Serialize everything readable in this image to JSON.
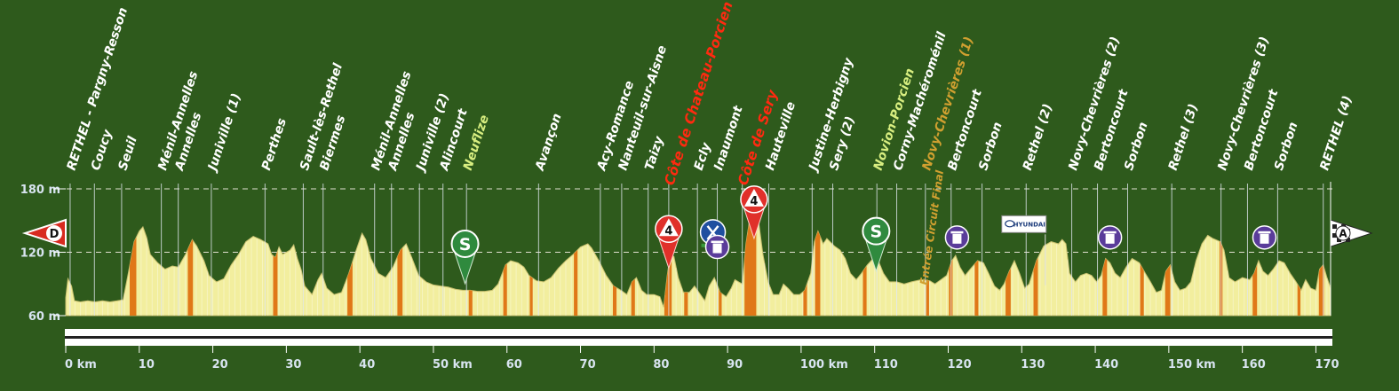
{
  "colors": {
    "background": "#2e5a1c",
    "profile_fill": "#f2ee9e",
    "profile_edge": "#c8c070",
    "climb_stripe": "#e07818",
    "town_label": "#ffffff",
    "climb_label": "#ff2a10",
    "sprint_label": "#d8ee80",
    "circuit_label": "#d0a030",
    "gridline": "#e0e0d0",
    "axis_text": "#d8e4f0"
  },
  "chart_data": {
    "type": "area",
    "title": "",
    "xlabel": "",
    "ylabel": "",
    "xlim": [
      0,
      172
    ],
    "ylim": [
      60,
      180
    ],
    "y_ticks": [
      {
        "value": 60,
        "label": "60 m"
      },
      {
        "value": 120,
        "label": "120 m"
      },
      {
        "value": 180,
        "label": "180 m"
      }
    ],
    "y_dashed_lines": [
      120,
      180
    ],
    "x_ticks": [
      {
        "value": 0,
        "label": "0 km"
      },
      {
        "value": 10,
        "label": "10"
      },
      {
        "value": 20,
        "label": "20"
      },
      {
        "value": 30,
        "label": "30"
      },
      {
        "value": 40,
        "label": "40"
      },
      {
        "value": 50,
        "label": "50 km"
      },
      {
        "value": 60,
        "label": "60"
      },
      {
        "value": 70,
        "label": "70"
      },
      {
        "value": 80,
        "label": "80"
      },
      {
        "value": 90,
        "label": "90"
      },
      {
        "value": 100,
        "label": "100 km"
      },
      {
        "value": 110,
        "label": "110"
      },
      {
        "value": 120,
        "label": "120"
      },
      {
        "value": 130,
        "label": "130"
      },
      {
        "value": 140,
        "label": "140"
      },
      {
        "value": 150,
        "label": "150 km"
      },
      {
        "value": 160,
        "label": "160"
      },
      {
        "value": 170,
        "label": "170"
      }
    ],
    "profile": [
      [
        0,
        77
      ],
      [
        0.3,
        95
      ],
      [
        0.8,
        88
      ],
      [
        1.2,
        74
      ],
      [
        2,
        73
      ],
      [
        3,
        74
      ],
      [
        4,
        73
      ],
      [
        5,
        74
      ],
      [
        6,
        73
      ],
      [
        7,
        74
      ],
      [
        7.8,
        75
      ],
      [
        8.5,
        100
      ],
      [
        9.3,
        130
      ],
      [
        10,
        140
      ],
      [
        10.5,
        144
      ],
      [
        11,
        134
      ],
      [
        11.5,
        118
      ],
      [
        12.5,
        110
      ],
      [
        13.5,
        104
      ],
      [
        14.5,
        107
      ],
      [
        15.3,
        106
      ],
      [
        16.3,
        118
      ],
      [
        17.2,
        132
      ],
      [
        17.8,
        126
      ],
      [
        18.8,
        112
      ],
      [
        19.5,
        98
      ],
      [
        20.5,
        92
      ],
      [
        21.5,
        95
      ],
      [
        22.5,
        108
      ],
      [
        23.5,
        118
      ],
      [
        24.5,
        130
      ],
      [
        25.5,
        135
      ],
      [
        26.5,
        132
      ],
      [
        27.5,
        128
      ],
      [
        28,
        118
      ],
      [
        28.5,
        115
      ],
      [
        29,
        125
      ],
      [
        29.5,
        118
      ],
      [
        30.5,
        122
      ],
      [
        31,
        127
      ],
      [
        31.5,
        114
      ],
      [
        32,
        104
      ],
      [
        32.5,
        88
      ],
      [
        33.5,
        80
      ],
      [
        34.3,
        94
      ],
      [
        34.8,
        100
      ],
      [
        35.5,
        86
      ],
      [
        36.5,
        80
      ],
      [
        37.5,
        82
      ],
      [
        38.5,
        100
      ],
      [
        39.5,
        122
      ],
      [
        40.3,
        138
      ],
      [
        40.8,
        132
      ],
      [
        41.5,
        114
      ],
      [
        42.5,
        100
      ],
      [
        43.5,
        96
      ],
      [
        44.5,
        106
      ],
      [
        45.5,
        122
      ],
      [
        46.3,
        128
      ],
      [
        47,
        116
      ],
      [
        48,
        98
      ],
      [
        49,
        92
      ],
      [
        50,
        89
      ],
      [
        51,
        88
      ],
      [
        52,
        87
      ],
      [
        53,
        85
      ],
      [
        54,
        84
      ],
      [
        55,
        84
      ],
      [
        56,
        83
      ],
      [
        57,
        83
      ],
      [
        58,
        84
      ],
      [
        58.8,
        90
      ],
      [
        59.8,
        108
      ],
      [
        60.5,
        112
      ],
      [
        61.5,
        110
      ],
      [
        62.3,
        106
      ],
      [
        63,
        98
      ],
      [
        64,
        93
      ],
      [
        65,
        92
      ],
      [
        66,
        96
      ],
      [
        67,
        105
      ],
      [
        68,
        112
      ],
      [
        69,
        118
      ],
      [
        70,
        125
      ],
      [
        71,
        128
      ],
      [
        71.5,
        124
      ],
      [
        72.5,
        112
      ],
      [
        73.5,
        98
      ],
      [
        74.5,
        88
      ],
      [
        75.5,
        84
      ],
      [
        76.3,
        80
      ],
      [
        77,
        92
      ],
      [
        77.6,
        96
      ],
      [
        78.3,
        84
      ],
      [
        79,
        80
      ],
      [
        80,
        80
      ],
      [
        80.8,
        78
      ],
      [
        81.3,
        68
      ],
      [
        81.8,
        98
      ],
      [
        82.2,
        118
      ],
      [
        82.7,
        116
      ],
      [
        83.3,
        96
      ],
      [
        84,
        82
      ],
      [
        84.8,
        82
      ],
      [
        85.5,
        88
      ],
      [
        86.3,
        80
      ],
      [
        86.9,
        74
      ],
      [
        87.5,
        88
      ],
      [
        88.2,
        96
      ],
      [
        89,
        82
      ],
      [
        89.8,
        78
      ],
      [
        90.5,
        86
      ],
      [
        91,
        94
      ],
      [
        91.5,
        92
      ],
      [
        92,
        90
      ],
      [
        92.5,
        128
      ],
      [
        93.2,
        160
      ],
      [
        93.7,
        163
      ],
      [
        94.2,
        150
      ],
      [
        94.8,
        118
      ],
      [
        95.5,
        92
      ],
      [
        96.2,
        80
      ],
      [
        97,
        80
      ],
      [
        97.6,
        90
      ],
      [
        98.2,
        86
      ],
      [
        99,
        80
      ],
      [
        99.8,
        80
      ],
      [
        100.5,
        84
      ],
      [
        101.3,
        100
      ],
      [
        101.8,
        130
      ],
      [
        102.3,
        140
      ],
      [
        103,
        128
      ],
      [
        103.5,
        133
      ],
      [
        104.5,
        126
      ],
      [
        105.3,
        122
      ],
      [
        106,
        114
      ],
      [
        106.7,
        100
      ],
      [
        107.5,
        94
      ],
      [
        108.2,
        100
      ],
      [
        109,
        108
      ],
      [
        109.8,
        114
      ],
      [
        110.5,
        112
      ],
      [
        111.2,
        100
      ],
      [
        112,
        92
      ],
      [
        113,
        92
      ],
      [
        114,
        90
      ],
      [
        115,
        92
      ],
      [
        116.3,
        94
      ],
      [
        117.5,
        93
      ],
      [
        118.2,
        90
      ],
      [
        119,
        94
      ],
      [
        119.8,
        98
      ],
      [
        120.5,
        112
      ],
      [
        121,
        117
      ],
      [
        121.6,
        106
      ],
      [
        122.3,
        98
      ],
      [
        123,
        104
      ],
      [
        124,
        112
      ],
      [
        124.8,
        110
      ],
      [
        125.5,
        100
      ],
      [
        126.3,
        88
      ],
      [
        127,
        84
      ],
      [
        127.6,
        90
      ],
      [
        128.3,
        102
      ],
      [
        129,
        112
      ],
      [
        129.7,
        100
      ],
      [
        130.4,
        86
      ],
      [
        131,
        90
      ],
      [
        132,
        112
      ],
      [
        133,
        126
      ],
      [
        134,
        130
      ],
      [
        135,
        128
      ],
      [
        135.5,
        132
      ],
      [
        136,
        128
      ],
      [
        136.5,
        100
      ],
      [
        137.3,
        92
      ],
      [
        138,
        98
      ],
      [
        138.8,
        100
      ],
      [
        139.5,
        98
      ],
      [
        140.2,
        92
      ],
      [
        140.8,
        98
      ],
      [
        141.4,
        114
      ],
      [
        142,
        110
      ],
      [
        142.7,
        100
      ],
      [
        143.4,
        96
      ],
      [
        144.2,
        106
      ],
      [
        145,
        114
      ],
      [
        146,
        110
      ],
      [
        146.8,
        100
      ],
      [
        147.5,
        92
      ],
      [
        148.3,
        82
      ],
      [
        149,
        84
      ],
      [
        149.6,
        102
      ],
      [
        150.2,
        108
      ],
      [
        150.8,
        92
      ],
      [
        151.5,
        84
      ],
      [
        152.3,
        86
      ],
      [
        153,
        92
      ],
      [
        153.7,
        112
      ],
      [
        154.5,
        128
      ],
      [
        155.3,
        136
      ],
      [
        156,
        133
      ],
      [
        157,
        130
      ],
      [
        157.5,
        122
      ],
      [
        158.2,
        96
      ],
      [
        159,
        92
      ],
      [
        160,
        96
      ],
      [
        161,
        94
      ],
      [
        161.6,
        100
      ],
      [
        162.2,
        112
      ],
      [
        162.8,
        102
      ],
      [
        163.5,
        98
      ],
      [
        164.2,
        104
      ],
      [
        165,
        112
      ],
      [
        165.7,
        110
      ],
      [
        166.5,
        100
      ],
      [
        167.3,
        92
      ],
      [
        168,
        84
      ],
      [
        168.6,
        94
      ],
      [
        169.3,
        86
      ],
      [
        170,
        84
      ],
      [
        170.5,
        104
      ],
      [
        171,
        108
      ],
      [
        171.5,
        96
      ],
      [
        172,
        86
      ]
    ],
    "climb_stripes_km": [
      [
        8.7,
        9.6
      ],
      [
        16.6,
        17.3
      ],
      [
        28.2,
        28.8
      ],
      [
        38.3,
        39.0
      ],
      [
        45.1,
        45.8
      ],
      [
        54.8,
        55.3
      ],
      [
        59.5,
        60.0
      ],
      [
        63.1,
        63.5
      ],
      [
        69.1,
        69.6
      ],
      [
        74.4,
        74.9
      ],
      [
        76.9,
        77.4
      ],
      [
        81.4,
        82.4
      ],
      [
        84.1,
        84.6
      ],
      [
        88.8,
        89.2
      ],
      [
        92.3,
        93.9
      ],
      [
        100.3,
        100.8
      ],
      [
        101.9,
        102.6
      ],
      [
        108.4,
        108.9
      ],
      [
        117.0,
        117.4
      ],
      [
        120.1,
        120.6
      ],
      [
        123.6,
        124.1
      ],
      [
        127.8,
        128.5
      ],
      [
        131.6,
        132.2
      ],
      [
        141.0,
        141.6
      ],
      [
        146.1,
        146.6
      ],
      [
        149.5,
        150.2
      ],
      [
        156.9,
        157.3
      ],
      [
        161.4,
        162.0
      ],
      [
        167.5,
        167.9
      ],
      [
        170.4,
        171.1
      ]
    ],
    "waypoints": [
      {
        "km": 0.6,
        "label": "RETHEL - Pargny-Resson",
        "kind": "town"
      },
      {
        "km": 3.9,
        "label": "Coucy",
        "kind": "town"
      },
      {
        "km": 7.6,
        "label": "Seuil",
        "kind": "town"
      },
      {
        "km": 13.0,
        "label": "Ménil-Annelles",
        "kind": "town"
      },
      {
        "km": 15.3,
        "label": "Annelles",
        "kind": "town"
      },
      {
        "km": 19.8,
        "label": "Juniville (1)",
        "kind": "town"
      },
      {
        "km": 27.1,
        "label": "Perthes",
        "kind": "town"
      },
      {
        "km": 32.3,
        "label": "Sault-lès-Rethel",
        "kind": "town"
      },
      {
        "km": 35.0,
        "label": "Biermes",
        "kind": "town"
      },
      {
        "km": 42.0,
        "label": "Ménil-Annelles",
        "kind": "town"
      },
      {
        "km": 44.3,
        "label": "Annelles",
        "kind": "town"
      },
      {
        "km": 48.1,
        "label": "Juniville (2)",
        "kind": "town"
      },
      {
        "km": 51.3,
        "label": "Alincourt",
        "kind": "town"
      },
      {
        "km": 54.5,
        "label": "Neuflize",
        "kind": "sprint"
      },
      {
        "km": 64.3,
        "label": "Avançon",
        "kind": "town"
      },
      {
        "km": 72.7,
        "label": "Acy-Romance",
        "kind": "town"
      },
      {
        "km": 75.6,
        "label": "Nanteuil-sur-Aisne",
        "kind": "town"
      },
      {
        "km": 79.2,
        "label": "Taizy",
        "kind": "town"
      },
      {
        "km": 82.0,
        "label": "Côte de Chateau-Porcien",
        "kind": "climb"
      },
      {
        "km": 85.9,
        "label": "Ecly",
        "kind": "town"
      },
      {
        "km": 88.6,
        "label": "Inaumont",
        "kind": "town"
      },
      {
        "km": 92.0,
        "label": "Côte de Sery",
        "kind": "climb"
      },
      {
        "km": 95.6,
        "label": "Hauteville",
        "kind": "town"
      },
      {
        "km": 101.5,
        "label": "Justine-Herbigny",
        "kind": "town"
      },
      {
        "km": 104.3,
        "label": "Sery (2)",
        "kind": "town"
      },
      {
        "km": 110.3,
        "label": "Novion-Porcien",
        "kind": "sprint"
      },
      {
        "km": 113.0,
        "label": "Corny-Machéroménil",
        "kind": "town"
      },
      {
        "km": 116.9,
        "label": "Novy-Chevrières (1)",
        "kind": "circuit"
      },
      {
        "km": 120.4,
        "label": "Bertoncourt",
        "kind": "town"
      },
      {
        "km": 124.6,
        "label": "Sorbon",
        "kind": "town"
      },
      {
        "km": 130.6,
        "label": "Rethel (2)",
        "kind": "town"
      },
      {
        "km": 136.8,
        "label": "Novy-Chevrières (2)",
        "kind": "town"
      },
      {
        "km": 140.3,
        "label": "Bertoncourt",
        "kind": "town"
      },
      {
        "km": 144.4,
        "label": "Sorbon",
        "kind": "town"
      },
      {
        "km": 150.4,
        "label": "Rethel (3)",
        "kind": "town"
      },
      {
        "km": 157.1,
        "label": "Novy-Chevrières (3)",
        "kind": "town"
      },
      {
        "km": 160.7,
        "label": "Bertoncourt",
        "kind": "town"
      },
      {
        "km": 164.8,
        "label": "Sorbon",
        "kind": "town"
      },
      {
        "km": 171.0,
        "label": "RETHEL (4)",
        "kind": "town"
      }
    ],
    "markers": [
      {
        "km": 0,
        "elev": 138,
        "kind": "start",
        "text": "D"
      },
      {
        "km": 172,
        "elev": 138,
        "kind": "finish",
        "text": "A"
      },
      {
        "km": 54.3,
        "elev": 128,
        "kind": "sprint",
        "text": "S"
      },
      {
        "km": 110.2,
        "elev": 140,
        "kind": "sprint",
        "text": "S"
      },
      {
        "km": 82.0,
        "elev": 142,
        "kind": "kom",
        "text": "4"
      },
      {
        "km": 93.6,
        "elev": 170,
        "kind": "kom",
        "text": "4"
      },
      {
        "km": 88.0,
        "elev": 139,
        "kind": "feed",
        "text": ""
      },
      {
        "km": 88.6,
        "elev": 125,
        "kind": "waste",
        "text": ""
      },
      {
        "km": 121.2,
        "elev": 134,
        "kind": "waste",
        "text": ""
      },
      {
        "km": 142.0,
        "elev": 134,
        "kind": "waste",
        "text": ""
      },
      {
        "km": 163.0,
        "elev": 134,
        "kind": "waste",
        "text": ""
      },
      {
        "km": 130.3,
        "elev": 147,
        "kind": "sponsor",
        "text": "HYUNDAI"
      }
    ],
    "annotation": {
      "km": 117.4,
      "text": "Entrée Circuit Final"
    }
  }
}
